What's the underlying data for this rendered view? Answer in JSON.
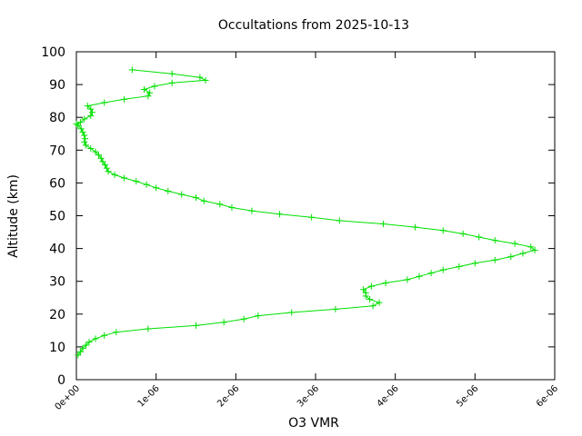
{
  "chart_data": {
    "type": "line",
    "title": "Occultations from 2025-10-13",
    "xlabel": "O3 VMR",
    "ylabel": "Altitude (km)",
    "xlim": [
      0,
      6e-06
    ],
    "ylim": [
      0,
      100
    ],
    "x_ticks": [
      "0e+00",
      "1e-06",
      "2e-06",
      "3e-06",
      "4e-06",
      "5e-06",
      "6e-06"
    ],
    "y_ticks": [
      "0",
      "10",
      "20",
      "30",
      "40",
      "50",
      "60",
      "70",
      "80",
      "90",
      "100"
    ],
    "grid": false,
    "series_color": "#00e000",
    "series": [
      {
        "points": [
          [
            2e-08,
            7.5
          ],
          [
            5e-08,
            8.5
          ],
          [
            8e-08,
            9.5
          ],
          [
            1.2e-07,
            10.5
          ],
          [
            1.6e-07,
            11.5
          ],
          [
            2.4e-07,
            12.5
          ],
          [
            3.5e-07,
            13.5
          ],
          [
            5e-07,
            14.5
          ],
          [
            9e-07,
            15.5
          ],
          [
            1.5e-06,
            16.5
          ],
          [
            1.85e-06,
            17.5
          ],
          [
            2.1e-06,
            18.5
          ],
          [
            2.28e-06,
            19.5
          ],
          [
            2.7e-06,
            20.5
          ],
          [
            3.25e-06,
            21.5
          ],
          [
            3.72e-06,
            22.5
          ],
          [
            3.8e-06,
            23.5
          ],
          [
            3.68e-06,
            24.5
          ],
          [
            3.63e-06,
            25.5
          ],
          [
            3.63e-06,
            26.5
          ],
          [
            3.6e-06,
            27.5
          ],
          [
            3.7e-06,
            28.5
          ],
          [
            3.88e-06,
            29.5
          ],
          [
            4.15e-06,
            30.5
          ],
          [
            4.3e-06,
            31.5
          ],
          [
            4.45e-06,
            32.5
          ],
          [
            4.6e-06,
            33.5
          ],
          [
            4.8e-06,
            34.5
          ],
          [
            5e-06,
            35.5
          ],
          [
            5.25e-06,
            36.5
          ],
          [
            5.45e-06,
            37.5
          ],
          [
            5.6e-06,
            38.5
          ],
          [
            5.75e-06,
            39.5
          ],
          [
            5.7e-06,
            40.5
          ],
          [
            5.5e-06,
            41.5
          ],
          [
            5.25e-06,
            42.5
          ],
          [
            5.05e-06,
            43.5
          ],
          [
            4.85e-06,
            44.5
          ],
          [
            4.6e-06,
            45.5
          ],
          [
            4.25e-06,
            46.5
          ],
          [
            3.85e-06,
            47.5
          ],
          [
            3.3e-06,
            48.5
          ],
          [
            2.95e-06,
            49.5
          ],
          [
            2.55e-06,
            50.5
          ],
          [
            2.2e-06,
            51.5
          ],
          [
            1.95e-06,
            52.5
          ],
          [
            1.8e-06,
            53.5
          ],
          [
            1.6e-06,
            54.5
          ],
          [
            1.5e-06,
            55.5
          ],
          [
            1.32e-06,
            56.5
          ],
          [
            1.15e-06,
            57.5
          ],
          [
            1e-06,
            58.5
          ],
          [
            8.8e-07,
            59.5
          ],
          [
            7.5e-07,
            60.5
          ],
          [
            6e-07,
            61.5
          ],
          [
            4.8e-07,
            62.5
          ],
          [
            4e-07,
            63.5
          ],
          [
            3.8e-07,
            64.5
          ],
          [
            3.6e-07,
            65.5
          ],
          [
            3.3e-07,
            66.5
          ],
          [
            3.1e-07,
            67.5
          ],
          [
            2.8e-07,
            68.5
          ],
          [
            2.4e-07,
            69.5
          ],
          [
            1.8e-07,
            70.5
          ],
          [
            1.2e-07,
            71.5
          ],
          [
            1e-07,
            72.5
          ],
          [
            1.1e-07,
            73.5
          ],
          [
            1e-07,
            74.5
          ],
          [
            8e-08,
            75.5
          ],
          [
            6e-08,
            76.5
          ],
          [
            2e-08,
            77.5
          ],
          [
            0.0,
            78.0
          ],
          [
            5e-08,
            78.5
          ],
          [
            1e-07,
            79.5
          ],
          [
            1.8e-07,
            80.5
          ],
          [
            2e-07,
            81.5
          ],
          [
            1.8e-07,
            82.5
          ],
          [
            1.4e-07,
            83.5
          ],
          [
            3.5e-07,
            84.5
          ],
          [
            6e-07,
            85.5
          ],
          [
            9e-07,
            86.5
          ],
          [
            9.2e-07,
            87.5
          ],
          [
            8.5e-07,
            88.5
          ],
          [
            9.8e-07,
            89.5
          ],
          [
            1.2e-06,
            90.5
          ],
          [
            1.62e-06,
            91.3
          ],
          [
            1.55e-06,
            92.2
          ],
          [
            1.2e-06,
            93.3
          ],
          [
            7e-07,
            94.5
          ]
        ]
      }
    ]
  }
}
